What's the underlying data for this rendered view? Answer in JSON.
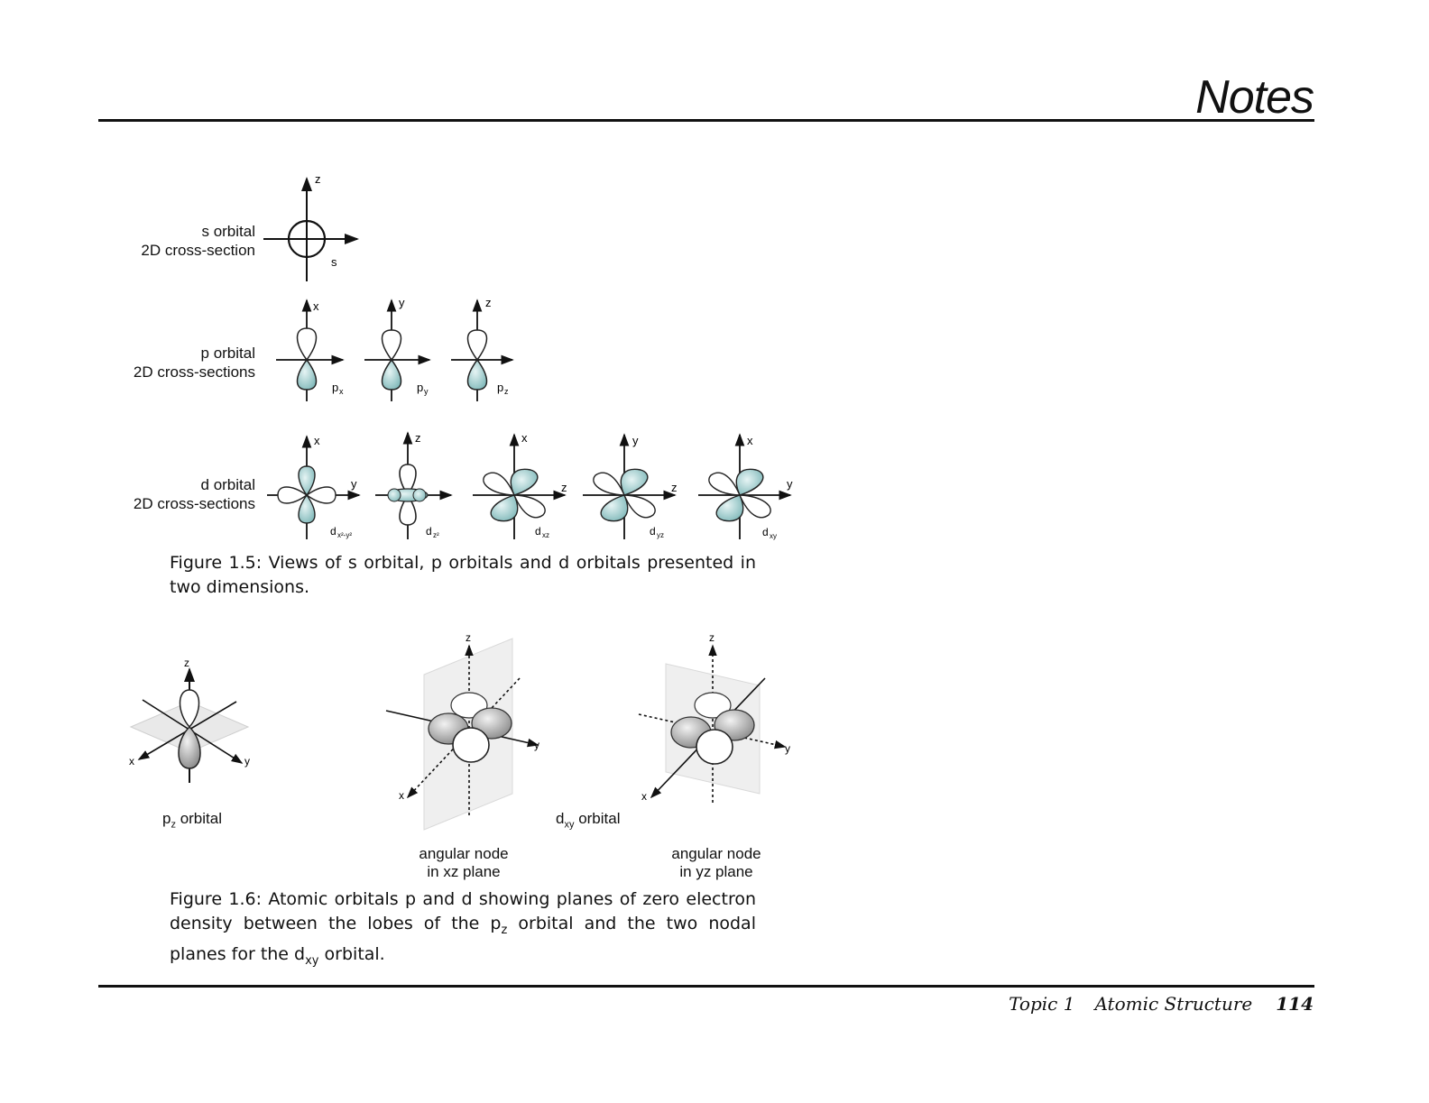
{
  "header": {
    "title": "Notes"
  },
  "figure_1_5": {
    "s_label_line1": "s orbital",
    "s_label_line2": "2D cross-section",
    "p_label_line1": "p orbital",
    "p_label_line2": "2D cross-sections",
    "d_label_line1": "d orbital",
    "d_label_line2": "2D cross-sections",
    "axis_z": "z",
    "axis_x": "x",
    "axis_y": "y",
    "s_sub": "s",
    "px": "p",
    "px_sub": "x",
    "py": "p",
    "py_sub": "y",
    "pz": "p",
    "pz_sub": "z",
    "dx2y2": "d",
    "dx2y2_sub": "x²-y²",
    "dz2": "d",
    "dz2_sub": "z²",
    "dxz": "d",
    "dxz_sub": "xz",
    "dyz": "d",
    "dyz_sub": "yz",
    "dxy": "d",
    "dxy_sub": "xy",
    "caption": "Figure 1.5: Views of s orbital, p orbitals and d orbitals presented in two dimensions."
  },
  "figure_1_6": {
    "pz_label": "p",
    "pz_label_sub": "z",
    "pz_label_rest": " orbital",
    "dxy_label": "d",
    "dxy_label_sub": "xy",
    "dxy_label_rest": " orbital",
    "node1_line1": "angular node",
    "node1_line2": "in xz plane",
    "node2_line1": "angular node",
    "node2_line2": "in yz plane",
    "caption_part1": "Figure 1.6: Atomic orbitals p and d showing planes of zero electron density between the lobes of the p",
    "caption_sub1": "z",
    "caption_part2": " orbital and the two nodal planes for the d",
    "caption_sub2": "xy",
    "caption_part3": " orbital."
  },
  "footer": {
    "topic": "Topic 1",
    "title": "Atomic Structure",
    "page": "114"
  },
  "colors": {
    "lobe_fill": "#9fcfcf",
    "lobe_dark": "#6aa9ab",
    "rule": "#111111"
  }
}
